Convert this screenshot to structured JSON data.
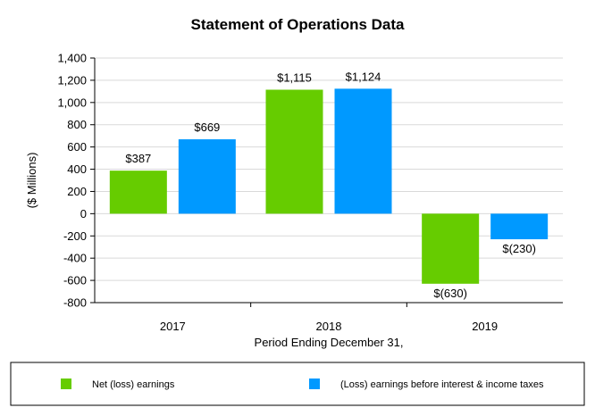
{
  "chart_data": {
    "type": "bar",
    "title": "Statement of Operations Data",
    "xlabel": "Period Ending December 31,",
    "ylabel": "($ Millions)",
    "ylim": [
      -800,
      1400
    ],
    "yticks": [
      -800,
      -600,
      -400,
      -200,
      0,
      200,
      400,
      600,
      800,
      1000,
      1200,
      1400
    ],
    "ytick_labels": [
      "-800",
      "-600",
      "-400",
      "-200",
      "0",
      "200",
      "400",
      "600",
      "800",
      "1,000",
      "1,200",
      "1,400"
    ],
    "categories": [
      "2017",
      "2018",
      "2019"
    ],
    "grid": true,
    "legend_position": "bottom",
    "series": [
      {
        "name": "Net (loss) earnings",
        "color": "#66cc00",
        "values": [
          387,
          1115,
          -630
        ],
        "labels": [
          "$387",
          "$1,115",
          "$(630)"
        ]
      },
      {
        "name": "(Loss) earnings before interest & income taxes",
        "color": "#0099ff",
        "values": [
          669,
          1124,
          -230
        ],
        "labels": [
          "$669",
          "$1,124",
          "$(230)"
        ]
      }
    ]
  }
}
